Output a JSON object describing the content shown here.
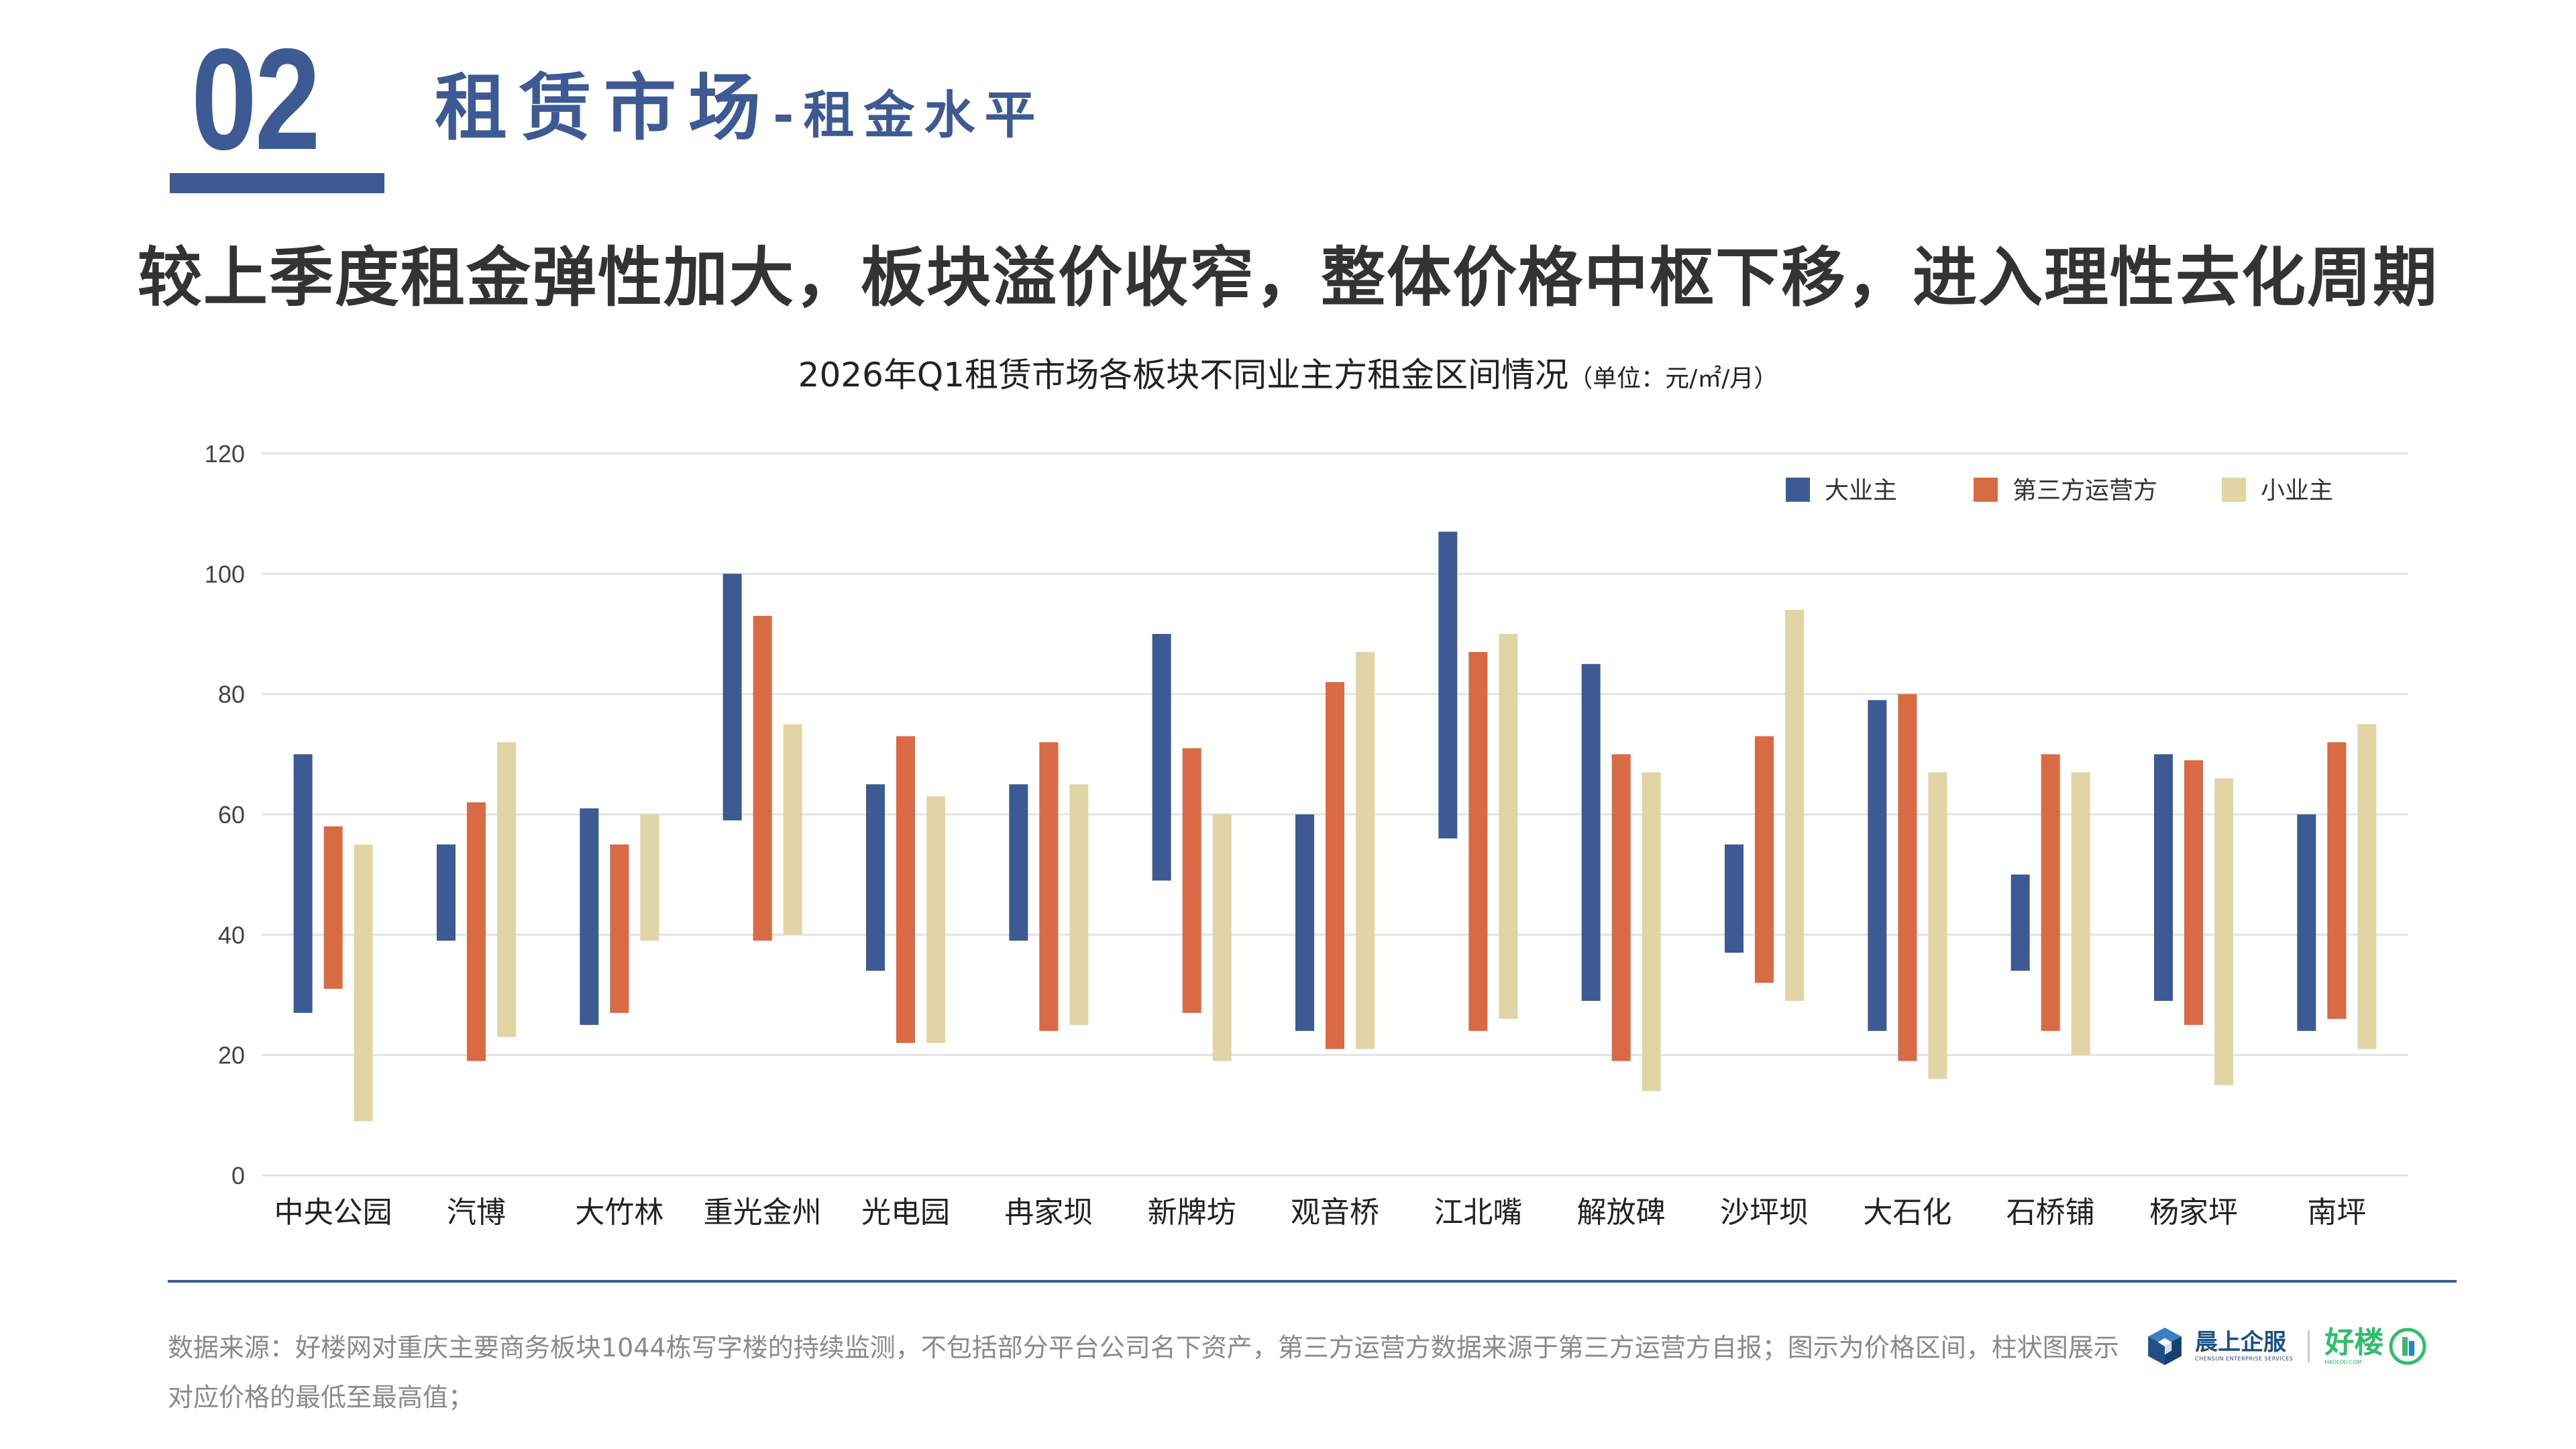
{
  "header": {
    "section_number": "02",
    "section_title": "租赁市场",
    "section_subtitle": "-租金水平"
  },
  "headline": "较上季度租金弹性加大，板块溢价收窄，整体价格中枢下移，进入理性去化周期",
  "colors": {
    "brand_blue": "#3d5a94",
    "series_big_owner": "#3d5a94",
    "series_third_party": "#d96b44",
    "series_small_owner": "#e1d5a5"
  },
  "chart_data": {
    "type": "bar",
    "subtype": "floating-range",
    "title": "2026年Q1租赁市场各板块不同业主方租金区间情况",
    "unit": "（单位：元/㎡/月）",
    "xlabel": "",
    "ylabel": "",
    "ylim": [
      0,
      120
    ],
    "yticks": [
      0,
      20,
      40,
      60,
      80,
      100,
      120
    ],
    "grid": true,
    "legend_position": "top-right",
    "categories": [
      "中央公园",
      "汽博",
      "大竹林",
      "重光金州",
      "光电园",
      "冉家坝",
      "新牌坊",
      "观音桥",
      "江北嘴",
      "解放碑",
      "沙坪坝",
      "大石化",
      "石桥铺",
      "杨家坪",
      "南坪"
    ],
    "series": [
      {
        "name": "大业主",
        "color": "#3d5a94",
        "ranges": [
          [
            27,
            70
          ],
          [
            39,
            55
          ],
          [
            25,
            61
          ],
          [
            59,
            100
          ],
          [
            34,
            65
          ],
          [
            39,
            65
          ],
          [
            49,
            90
          ],
          [
            24,
            60
          ],
          [
            56,
            107
          ],
          [
            29,
            85
          ],
          [
            37,
            55
          ],
          [
            24,
            79
          ],
          [
            34,
            50
          ],
          [
            29,
            70
          ],
          [
            24,
            60
          ]
        ]
      },
      {
        "name": "第三方运营方",
        "color": "#d96b44",
        "ranges": [
          [
            31,
            58
          ],
          [
            19,
            62
          ],
          [
            27,
            55
          ],
          [
            39,
            93
          ],
          [
            22,
            73
          ],
          [
            24,
            72
          ],
          [
            27,
            71
          ],
          [
            21,
            82
          ],
          [
            24,
            87
          ],
          [
            19,
            70
          ],
          [
            32,
            73
          ],
          [
            19,
            80
          ],
          [
            24,
            70
          ],
          [
            25,
            69
          ],
          [
            26,
            72
          ]
        ]
      },
      {
        "name": "小业主",
        "color": "#e1d5a5",
        "ranges": [
          [
            9,
            55
          ],
          [
            23,
            72
          ],
          [
            39,
            60
          ],
          [
            40,
            75
          ],
          [
            22,
            63
          ],
          [
            25,
            65
          ],
          [
            19,
            60
          ],
          [
            21,
            87
          ],
          [
            26,
            90
          ],
          [
            14,
            67
          ],
          [
            29,
            94
          ],
          [
            16,
            67
          ],
          [
            20,
            67
          ],
          [
            15,
            66
          ],
          [
            21,
            75
          ]
        ]
      }
    ]
  },
  "footnote": "数据来源：好楼网对重庆主要商务板块1044栋写字楼的持续监测，不包括部分平台公司名下资产，第三方运营方数据来源于第三方运营方自报；图示为价格区间，柱状图展示对应价格的最低至最高值；",
  "brands": {
    "primary_name": "晨上企服",
    "primary_en": "CHENSUN ENTERPRISE SERVICES",
    "primary_icon": "cube-logo-icon",
    "secondary_name": "好楼",
    "secondary_en": "HAOLOU.COM",
    "secondary_icon": "building-logo-icon"
  }
}
